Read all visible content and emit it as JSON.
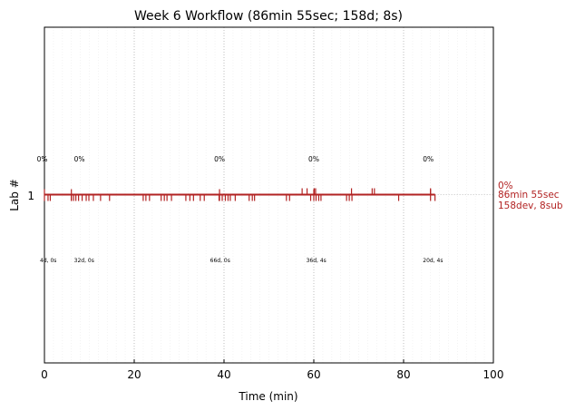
{
  "chart_data": {
    "type": "timeline",
    "title": "Week 6 Workflow (86min 55sec; 158d; 8s)",
    "xlabel": "Time (min)",
    "ylabel": "Lab #",
    "xlim": [
      0,
      100
    ],
    "xticks": [
      0,
      20,
      40,
      60,
      80,
      100
    ],
    "y_category": "1",
    "accent_color": "#b22222",
    "lane_end": 87,
    "segment_starts": [
      0,
      6,
      39,
      60,
      86
    ],
    "pct_labels": [
      {
        "x": -0.5,
        "text": "0%"
      },
      {
        "x": 7.8,
        "text": "0%"
      },
      {
        "x": 39.0,
        "text": "0%"
      },
      {
        "x": 60.0,
        "text": "0%"
      },
      {
        "x": 85.5,
        "text": "0%"
      }
    ],
    "seg_labels": [
      {
        "x": -1.0,
        "text": "4d, 0s"
      },
      {
        "x": 6.6,
        "text": "32d, 0s"
      },
      {
        "x": 36.9,
        "text": "66d, 0s"
      },
      {
        "x": 58.3,
        "text": "36d, 4s"
      },
      {
        "x": 84.3,
        "text": "20d, 4s"
      }
    ],
    "device_events": [
      0.8,
      1.3,
      6.0,
      6.5,
      7.0,
      7.6,
      8.4,
      9.3,
      9.9,
      10.9,
      12.5,
      14.5,
      22.0,
      22.6,
      23.4,
      26.0,
      26.7,
      27.3,
      28.3,
      31.5,
      32.4,
      33.2,
      34.7,
      35.6,
      38.9,
      39.6,
      40.3,
      40.9,
      41.4,
      42.5,
      45.6,
      46.3,
      46.8,
      53.9,
      54.6,
      59.3,
      60.5,
      61.1,
      61.6,
      67.3,
      67.9,
      68.5,
      78.9,
      87.0
    ],
    "submission_events": [
      57.4,
      58.5,
      60.1,
      60.4,
      68.4,
      73.0,
      73.5,
      86.0
    ],
    "summary_lines": [
      "0%",
      "86min 55sec",
      "158dev, 8sub"
    ]
  }
}
